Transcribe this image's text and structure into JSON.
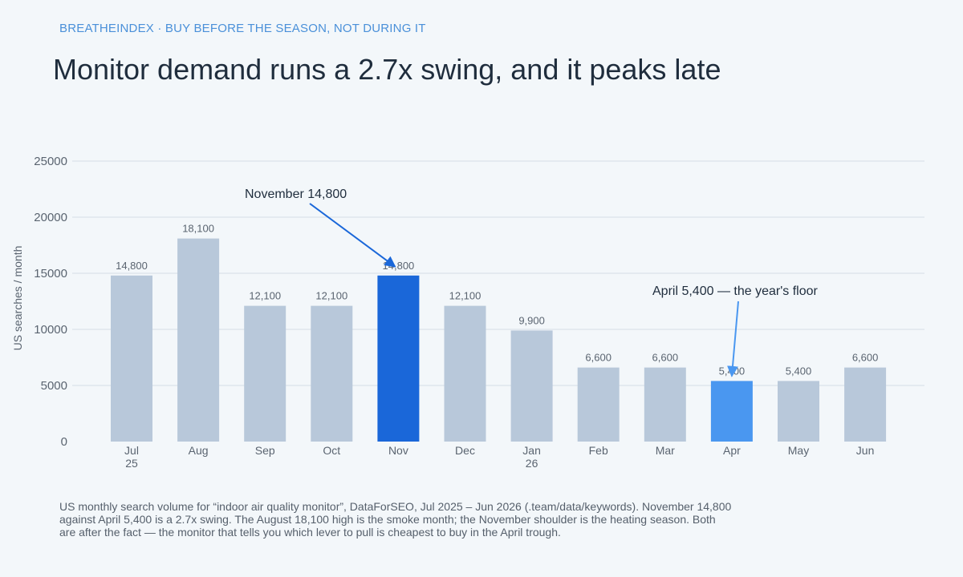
{
  "header": {
    "kicker": "BREATHEINDEX · BUY BEFORE THE SEASON, NOT DURING IT",
    "title": "Monitor demand runs a 2.7x swing, and it peaks late"
  },
  "caption": "US monthly search volume for “indoor air quality monitor”, DataForSEO, Jul 2025 – Jun 2026 (.team/data/keywords). November 14,800 against April 5,400 is a 2.7x swing. The August 18,100 high is the smoke month; the November shoulder is the heating season. Both are after the fact — the monitor that tells you which lever to pull is cheapest to buy in the April trough.",
  "colors": {
    "default_bar": "#b8c8da",
    "peak_bar": "#1a67d9",
    "floor_bar": "#4a97f0",
    "grid": "#d5dde6",
    "axis_text": "#5a6470",
    "annotation_arrow_peak": "#1a67d9",
    "annotation_arrow_floor": "#4a97f0"
  },
  "chart_data": {
    "type": "bar",
    "ylabel": "US searches / month",
    "ylim": [
      0,
      25000
    ],
    "yticks": [
      0,
      5000,
      10000,
      15000,
      20000,
      25000
    ],
    "grid": true,
    "categories": [
      [
        "Jul",
        "25"
      ],
      [
        "Aug"
      ],
      [
        "Sep"
      ],
      [
        "Oct"
      ],
      [
        "Nov"
      ],
      [
        "Dec"
      ],
      [
        "Jan",
        "26"
      ],
      [
        "Feb"
      ],
      [
        "Mar"
      ],
      [
        "Apr"
      ],
      [
        "May"
      ],
      [
        "Jun"
      ]
    ],
    "values": [
      14800,
      18100,
      12100,
      12100,
      14800,
      12100,
      9900,
      6600,
      6600,
      5400,
      5400,
      6600
    ],
    "value_labels": [
      "14,800",
      "18,100",
      "12,100",
      "12,100",
      "14,800",
      "12,100",
      "9,900",
      "6,600",
      "6,600",
      "5,400",
      "5,400",
      "6,600"
    ],
    "highlights": [
      {
        "index": 4,
        "color_key": "peak_bar"
      },
      {
        "index": 9,
        "color_key": "floor_bar"
      }
    ],
    "annotations": [
      {
        "text": "November 14,800",
        "target_index": 4,
        "color_key": "annotation_arrow_peak"
      },
      {
        "text": "April 5,400 — the year's floor",
        "target_index": 9,
        "color_key": "annotation_arrow_floor"
      }
    ]
  }
}
